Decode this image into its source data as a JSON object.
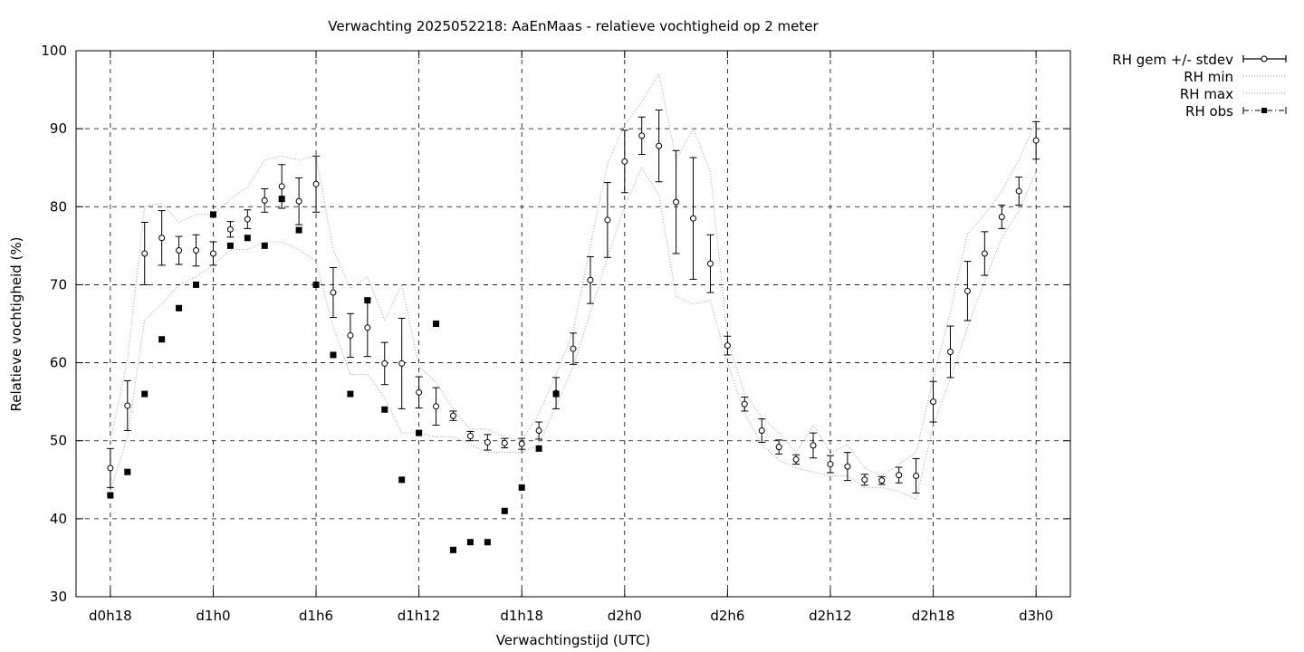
{
  "chart_data": {
    "type": "line",
    "title": "Verwachting 2025052218: AaEnMaas - relatieve vochtigheid op 2 meter",
    "xlabel": "Verwachtingstijd (UTC)",
    "ylabel": "Relatieve vochtigheid (%)",
    "ylim": [
      30,
      100
    ],
    "yticks": [
      30,
      40,
      50,
      60,
      70,
      80,
      90,
      100
    ],
    "xlim_hours": [
      16,
      74
    ],
    "xticks": [
      {
        "hour": 18,
        "label": "d0h18"
      },
      {
        "hour": 24,
        "label": "d1h0"
      },
      {
        "hour": 30,
        "label": "d1h6"
      },
      {
        "hour": 36,
        "label": "d1h12"
      },
      {
        "hour": 42,
        "label": "d1h18"
      },
      {
        "hour": 48,
        "label": "d2h0"
      },
      {
        "hour": 54,
        "label": "d2h6"
      },
      {
        "hour": 60,
        "label": "d2h12"
      },
      {
        "hour": 66,
        "label": "d2h18"
      },
      {
        "hour": 72,
        "label": "d3h0"
      }
    ],
    "grid": true,
    "legend_position": "outside-top-right",
    "series": [
      {
        "name": "RH gem +/- stdev",
        "style": "errorbars-open-circle",
        "x": [
          18,
          19,
          20,
          21,
          22,
          23,
          24,
          25,
          26,
          27,
          28,
          29,
          30,
          31,
          32,
          33,
          34,
          35,
          36,
          37,
          38,
          39,
          40,
          41,
          42,
          43,
          44,
          45,
          46,
          47,
          48,
          49,
          50,
          51,
          52,
          53,
          54,
          55,
          56,
          57,
          58,
          59,
          60,
          61,
          62,
          63,
          64,
          65,
          66,
          67,
          68,
          69,
          70,
          71,
          72
        ],
        "y": [
          46.5,
          54.5,
          74.0,
          76.0,
          74.4,
          74.4,
          74.0,
          77.1,
          78.4,
          80.8,
          82.6,
          80.7,
          82.9,
          69.0,
          63.5,
          64.5,
          59.9,
          59.9,
          56.2,
          54.4,
          53.2,
          50.6,
          49.8,
          49.7,
          49.6,
          51.3,
          56.1,
          61.8,
          70.6,
          78.3,
          85.8,
          89.1,
          87.8,
          80.6,
          78.5,
          72.7,
          62.2,
          54.7,
          51.3,
          49.2,
          47.6,
          49.4,
          47.0,
          46.7,
          45.0,
          44.9,
          45.6,
          45.5,
          55.0,
          61.4,
          69.2,
          74.0,
          78.7,
          82.0,
          88.5
        ],
        "err": [
          2.5,
          3.2,
          4.0,
          3.5,
          1.8,
          2.0,
          1.5,
          1.0,
          1.2,
          1.5,
          2.8,
          3.0,
          3.6,
          3.2,
          2.8,
          3.7,
          2.7,
          5.8,
          2.0,
          2.4,
          0.6,
          0.6,
          1.0,
          0.6,
          0.7,
          1.1,
          2.0,
          2.0,
          3.0,
          4.8,
          4.0,
          2.4,
          4.6,
          6.6,
          7.8,
          3.7,
          1.2,
          0.9,
          1.5,
          0.9,
          0.6,
          1.6,
          1.1,
          1.8,
          0.7,
          0.5,
          1.0,
          2.2,
          2.6,
          3.3,
          3.8,
          2.8,
          1.5,
          1.8,
          2.4
        ]
      },
      {
        "name": "RH min",
        "style": "dotted-line",
        "x": [
          18,
          19,
          20,
          21,
          22,
          23,
          24,
          25,
          26,
          27,
          28,
          29,
          30,
          31,
          32,
          33,
          34,
          35,
          36,
          37,
          38,
          39,
          40,
          41,
          42,
          43,
          44,
          45,
          46,
          47,
          48,
          49,
          50,
          51,
          52,
          53,
          54,
          55,
          56,
          57,
          58,
          59,
          60,
          61,
          62,
          63,
          64,
          65,
          66,
          67,
          68,
          69,
          70,
          71,
          72
        ],
        "y": [
          43.5,
          50.5,
          65.5,
          67.5,
          70.0,
          71.0,
          72.5,
          74.5,
          74.5,
          75.5,
          75.5,
          74.5,
          73.0,
          64.5,
          58.5,
          58.5,
          55.5,
          51.0,
          51.0,
          50.5,
          50.5,
          49.5,
          48.5,
          48.5,
          48.5,
          49.5,
          54.5,
          59.5,
          66.5,
          73.5,
          80.0,
          85.0,
          81.5,
          68.5,
          67.5,
          68.0,
          60.0,
          53.5,
          49.5,
          47.5,
          46.5,
          46.0,
          45.5,
          45.5,
          44.0,
          44.0,
          43.5,
          42.5,
          52.0,
          58.0,
          64.5,
          70.5,
          76.0,
          79.5,
          84.5
        ]
      },
      {
        "name": "RH max",
        "style": "dotted-line",
        "x": [
          18,
          19,
          20,
          21,
          22,
          23,
          24,
          25,
          26,
          27,
          28,
          29,
          30,
          31,
          32,
          33,
          34,
          35,
          36,
          37,
          38,
          39,
          40,
          41,
          42,
          43,
          44,
          45,
          46,
          47,
          48,
          49,
          50,
          51,
          52,
          53,
          54,
          55,
          56,
          57,
          58,
          59,
          60,
          61,
          62,
          63,
          64,
          65,
          66,
          67,
          68,
          69,
          70,
          71,
          72
        ],
        "y": [
          50.0,
          60.5,
          80.0,
          80.5,
          78.0,
          79.0,
          79.0,
          81.0,
          82.5,
          86.0,
          86.5,
          86.0,
          86.5,
          74.5,
          69.5,
          71.0,
          65.5,
          70.0,
          59.5,
          57.5,
          54.0,
          51.5,
          51.5,
          50.5,
          50.0,
          53.5,
          58.5,
          64.0,
          75.0,
          85.5,
          90.5,
          93.5,
          97.0,
          86.0,
          90.0,
          84.5,
          63.0,
          56.0,
          53.0,
          51.0,
          48.5,
          52.0,
          48.5,
          49.5,
          46.5,
          45.5,
          47.0,
          48.5,
          58.0,
          66.5,
          76.5,
          79.0,
          82.0,
          86.0,
          91.0
        ]
      },
      {
        "name": "RH obs",
        "style": "filled-square-points",
        "x": [
          18,
          19,
          20,
          21,
          22,
          23,
          24,
          25,
          26,
          27,
          28,
          29,
          30,
          31,
          32,
          33,
          34,
          35,
          36,
          37,
          38,
          39,
          40,
          41,
          42,
          43,
          44
        ],
        "y": [
          43,
          46,
          56,
          63,
          67,
          70,
          79,
          75,
          76,
          75,
          81,
          77,
          70,
          61,
          56,
          68,
          54,
          45,
          51,
          65,
          36,
          37,
          37,
          41,
          44,
          49,
          56
        ]
      }
    ]
  }
}
